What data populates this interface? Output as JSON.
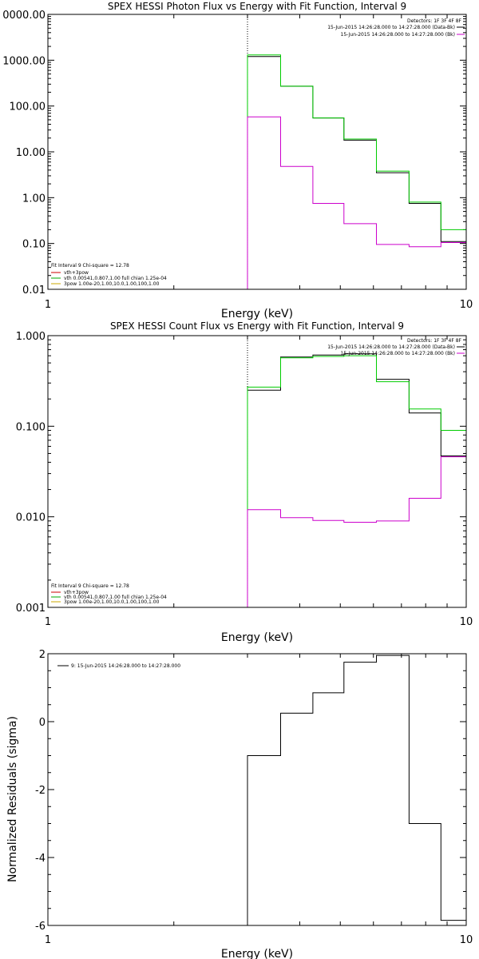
{
  "chart_data": [
    {
      "type": "line",
      "title": "SPEX HESSI Photon Flux vs Energy with Fit Function, Interval 9",
      "xlabel": "Energy (keV)",
      "ylabel": "",
      "xscale": "log",
      "yscale": "log",
      "xlim": [
        1,
        10
      ],
      "ylim": [
        0.01,
        10000
      ],
      "x_ticks": [
        "1",
        "10"
      ],
      "y_ticks": [
        "0.01",
        "0.10",
        "1.00",
        "10.00",
        "100.00",
        "1000.00",
        "0000.00"
      ],
      "y_tick_values": [
        0.01,
        0.1,
        1,
        10,
        100,
        1000,
        10000
      ],
      "fit_start_energy": 3.0,
      "legend_top_right": [
        {
          "text": "Detectors: 1F 3F 4F 8F",
          "color": "#000000"
        },
        {
          "text": "15-Jun-2015 14:26:28.000 to 14:27:28.000 (Data-Bk)",
          "color": "#000000"
        },
        {
          "text": "15-Jun-2015 14:26:28.000 to 14:27:28.000 (Bk)",
          "color": "#cc00cc"
        }
      ],
      "legend_bottom_left": [
        {
          "text": "Fit Interval 9   Chi-square = 12.78",
          "color": "#000000"
        },
        {
          "text": "vth+3pow",
          "color": "#cc0000"
        },
        {
          "text": "vth 0.00541,0.807,1.00  full chian 1.25e-04",
          "color": "#00aa00"
        },
        {
          "text": "3pow 1.00e-20,1.00,10.0,1.00,100,1.00",
          "color": "#ccaa00"
        }
      ],
      "series": [
        {
          "name": "Data-Bk",
          "color": "#000000",
          "edges": [
            3.0,
            3.6,
            4.3,
            5.1,
            6.1,
            7.3,
            8.7,
            10.0
          ],
          "values": [
            1200,
            270,
            55,
            18,
            3.5,
            0.75,
            0.11
          ]
        },
        {
          "name": "Fit",
          "color": "#00cc00",
          "edges": [
            3.0,
            3.6,
            4.3,
            5.1,
            6.1,
            7.3,
            8.7,
            10.0
          ],
          "values": [
            1300,
            270,
            55,
            19,
            3.8,
            0.8,
            0.2
          ]
        },
        {
          "name": "Bk",
          "color": "#cc00cc",
          "edges": [
            3.0,
            3.6,
            4.3,
            5.1,
            6.1,
            7.3,
            8.7,
            10.0
          ],
          "values": [
            58,
            4.8,
            0.75,
            0.27,
            0.095,
            0.085,
            0.105
          ]
        }
      ]
    },
    {
      "type": "line",
      "title": "SPEX HESSI Count Flux vs Energy with Fit Function, Interval 9",
      "xlabel": "Energy (keV)",
      "ylabel": "",
      "xscale": "log",
      "yscale": "log",
      "xlim": [
        1,
        10
      ],
      "ylim": [
        0.001,
        1.0
      ],
      "x_ticks": [
        "1",
        "10"
      ],
      "y_ticks": [
        "0.001",
        "0.010",
        "0.100",
        "1.000"
      ],
      "y_tick_values": [
        0.001,
        0.01,
        0.1,
        1.0
      ],
      "fit_start_energy": 3.0,
      "legend_top_right": [
        {
          "text": "Detectors: 1F 3F 4F 8F",
          "color": "#000000"
        },
        {
          "text": "15-Jun-2015 14:26:28.000 to 14:27:28.000 (Data-Bk)",
          "color": "#000000"
        },
        {
          "text": "15-Jun-2015 14:26:28.000 to 14:27:28.000 (Bk)",
          "color": "#cc00cc"
        }
      ],
      "legend_bottom_left": [
        {
          "text": "Fit Interval 9   Chi-square = 12.78",
          "color": "#000000"
        },
        {
          "text": "vth+3pow",
          "color": "#cc0000"
        },
        {
          "text": "vth 0.00541,0.807,1.00  full chian 1.25e-04",
          "color": "#00aa00"
        },
        {
          "text": "3pow 1.00e-20,1.00,10.0,1.00,100,1.00",
          "color": "#ccaa00"
        }
      ],
      "series": [
        {
          "name": "Data-Bk",
          "color": "#000000",
          "edges": [
            3.0,
            3.6,
            4.3,
            5.1,
            6.1,
            7.3,
            8.7,
            10.0
          ],
          "values": [
            0.25,
            0.58,
            0.61,
            0.63,
            0.33,
            0.14,
            0.047
          ]
        },
        {
          "name": "Fit",
          "color": "#00cc00",
          "edges": [
            3.0,
            3.6,
            4.3,
            5.1,
            6.1,
            7.3,
            8.7,
            10.0
          ],
          "values": [
            0.27,
            0.57,
            0.59,
            0.6,
            0.31,
            0.155,
            0.09
          ]
        },
        {
          "name": "Bk",
          "color": "#cc00cc",
          "edges": [
            3.0,
            3.6,
            4.3,
            5.1,
            6.1,
            7.3,
            8.7,
            10.0
          ],
          "values": [
            0.012,
            0.0098,
            0.0091,
            0.0087,
            0.009,
            0.016,
            0.046
          ]
        }
      ]
    },
    {
      "type": "line",
      "title": "",
      "xlabel": "Energy (keV)",
      "ylabel": "Normalized Residuals (sigma)",
      "xscale": "log",
      "yscale": "linear",
      "xlim": [
        1,
        10
      ],
      "ylim": [
        -6,
        2
      ],
      "x_ticks": [
        "1",
        "10"
      ],
      "y_ticks": [
        "-6",
        "-4",
        "-2",
        "0",
        "2"
      ],
      "y_tick_values": [
        -6,
        -4,
        -2,
        0,
        2
      ],
      "legend": [
        {
          "text": "9: 15-Jun-2015 14:26:28.000 to 14:27:28.000",
          "color": "#000000"
        }
      ],
      "series": [
        {
          "name": "9: 15-Jun-2015 14:26:28.000 to 14:27:28.000",
          "color": "#000000",
          "edges": [
            3.0,
            3.6,
            4.3,
            5.1,
            6.1,
            7.3,
            8.7,
            10.0
          ],
          "values": [
            -1.0,
            0.25,
            0.85,
            1.75,
            1.95,
            -3.0,
            -5.85
          ]
        }
      ]
    }
  ]
}
